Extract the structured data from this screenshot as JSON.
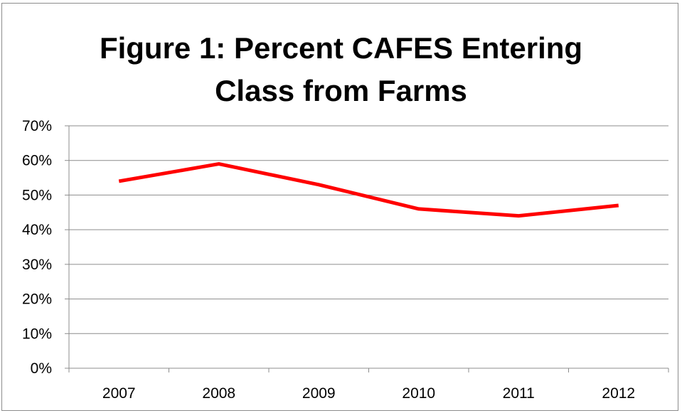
{
  "chart_data": {
    "type": "line",
    "title_line1": "Figure 1: Percent CAFES Entering",
    "title_line2": "Class from Farms",
    "categories": [
      "2007",
      "2008",
      "2009",
      "2010",
      "2011",
      "2012"
    ],
    "series": [
      {
        "values": [
          54,
          59,
          53,
          46,
          44,
          47
        ],
        "color": "#ff0000"
      }
    ],
    "y_ticks": [
      "0%",
      "10%",
      "20%",
      "30%",
      "40%",
      "50%",
      "60%",
      "70%"
    ],
    "ylim": [
      0,
      70
    ],
    "grid": true,
    "legend": "none"
  }
}
